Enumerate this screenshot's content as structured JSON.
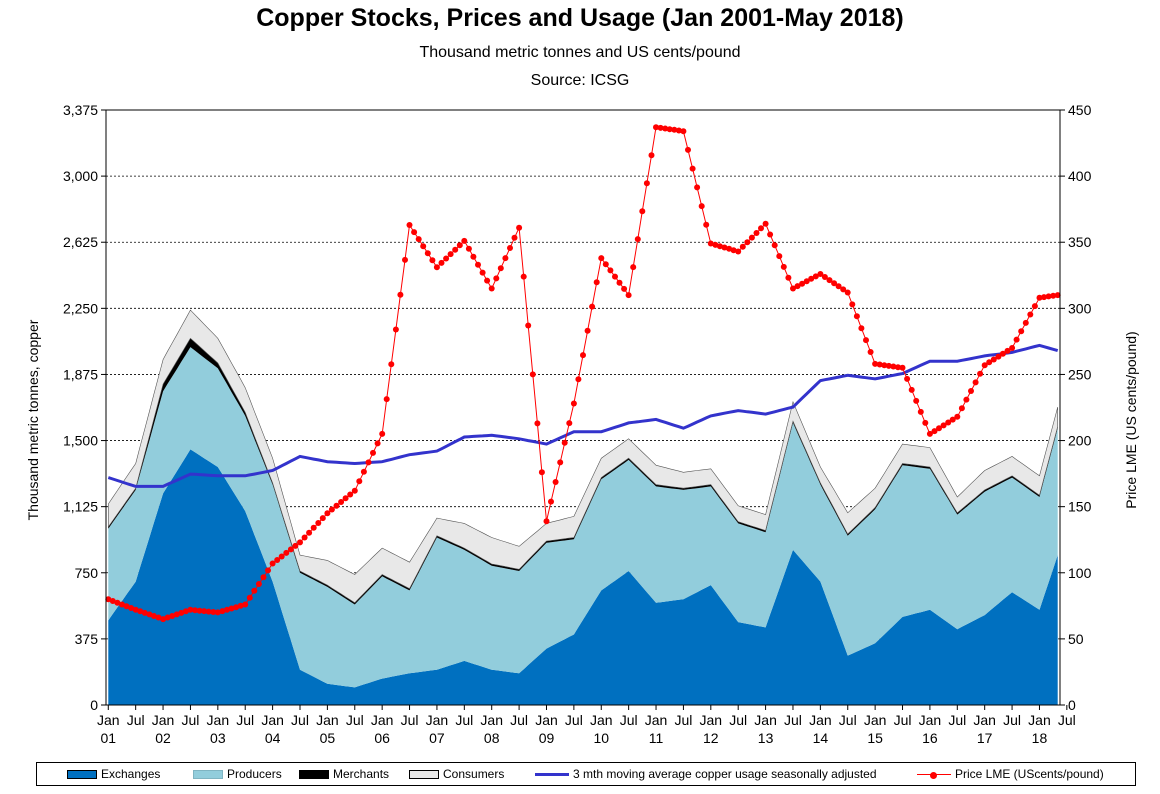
{
  "chart_data": {
    "type": "area",
    "title": "Copper Stocks, Prices and Usage (Jan 2001-May 2018)",
    "subtitle": "Thousand metric tonnes and US cents/pound",
    "source": "Source: ICSG",
    "ylabel": "Thousand metric tonnes, copper",
    "y2label": "Price LME (US cents/pound)",
    "ylim": [
      0,
      3375
    ],
    "y2lim": [
      0,
      450
    ],
    "yticks": [
      "0",
      "375",
      "750",
      "1,125",
      "1,500",
      "1,875",
      "2,250",
      "2,625",
      "3,000",
      "3,375"
    ],
    "y2ticks": [
      "0",
      "50",
      "100",
      "150",
      "200",
      "250",
      "300",
      "350",
      "400",
      "450"
    ],
    "grid": true,
    "legend_position": "bottom",
    "x_months": {
      "start": "2001-01",
      "end": "2018-05"
    },
    "xticks_month": [
      "Jan",
      "Jul",
      "Jan",
      "Jul",
      "Jan",
      "Jul",
      "Jan",
      "Jul",
      "Jan",
      "Jul",
      "Jan",
      "Jul",
      "Jan",
      "Jul",
      "Jan",
      "Jul",
      "Jan",
      "Jul",
      "Jan",
      "Jul",
      "Jan",
      "Jul",
      "Jan",
      "Jul",
      "Jan",
      "Jul",
      "Jan",
      "Jul",
      "Jan",
      "Jul",
      "Jan",
      "Jul",
      "Jan",
      "Jul",
      "Jan",
      "Jul"
    ],
    "xticks_year": [
      "01",
      "02",
      "03",
      "04",
      "05",
      "06",
      "07",
      "08",
      "09",
      "10",
      "11",
      "12",
      "13",
      "14",
      "15",
      "16",
      "17",
      "18"
    ],
    "anchor_months": [
      "2001-01",
      "2001-07",
      "2002-01",
      "2002-07",
      "2003-01",
      "2003-07",
      "2004-01",
      "2004-07",
      "2005-01",
      "2005-07",
      "2006-01",
      "2006-07",
      "2007-01",
      "2007-07",
      "2008-01",
      "2008-07",
      "2009-01",
      "2009-07",
      "2010-01",
      "2010-07",
      "2011-01",
      "2011-07",
      "2012-01",
      "2012-07",
      "2013-01",
      "2013-07",
      "2014-01",
      "2014-07",
      "2015-01",
      "2015-07",
      "2016-01",
      "2016-07",
      "2017-01",
      "2017-07",
      "2018-01",
      "2018-05"
    ],
    "series": [
      {
        "name": "Exchanges",
        "color": "#0070c0",
        "kind": "stacked-area",
        "values": [
          480,
          700,
          1200,
          1450,
          1350,
          1100,
          700,
          200,
          120,
          100,
          150,
          180,
          200,
          250,
          200,
          180,
          320,
          400,
          650,
          760,
          580,
          600,
          680,
          470,
          440,
          880,
          700,
          280,
          350,
          500,
          540,
          430,
          510,
          640,
          540,
          850
        ]
      },
      {
        "name": "Producers",
        "color": "#92cddc",
        "kind": "stacked-area",
        "values": [
          520,
          520,
          580,
          580,
          560,
          540,
          550,
          550,
          550,
          470,
          580,
          470,
          750,
          630,
          590,
          580,
          600,
          540,
          630,
          630,
          660,
          620,
          560,
          560,
          540,
          720,
          550,
          680,
          760,
          860,
          800,
          650,
          700,
          650,
          640,
          720
        ]
      },
      {
        "name": "Merchants",
        "color": "#000000",
        "kind": "stacked-area",
        "values": [
          10,
          10,
          40,
          50,
          30,
          20,
          10,
          10,
          10,
          10,
          10,
          10,
          10,
          10,
          10,
          10,
          10,
          10,
          10,
          10,
          10,
          10,
          10,
          10,
          10,
          10,
          10,
          10,
          10,
          10,
          10,
          10,
          10,
          10,
          10,
          10
        ]
      },
      {
        "name": "Consumers",
        "color": "#e8e8e8",
        "kind": "stacked-area",
        "values": [
          130,
          140,
          140,
          160,
          140,
          140,
          140,
          90,
          140,
          160,
          150,
          150,
          100,
          140,
          150,
          130,
          100,
          120,
          110,
          110,
          110,
          90,
          90,
          90,
          90,
          110,
          90,
          120,
          110,
          110,
          110,
          90,
          110,
          110,
          110,
          110
        ]
      },
      {
        "name": "3 mth moving average copper usage seasonally adjusted",
        "color": "#3333cc",
        "kind": "line",
        "values": [
          1290,
          1240,
          1240,
          1310,
          1300,
          1300,
          1330,
          1410,
          1380,
          1370,
          1380,
          1420,
          1440,
          1520,
          1530,
          1510,
          1480,
          1550,
          1550,
          1600,
          1620,
          1570,
          1640,
          1670,
          1650,
          1690,
          1840,
          1870,
          1850,
          1880,
          1950,
          1950,
          1980,
          2000,
          2040,
          2010
        ]
      },
      {
        "name": "Price LME (UScents/pound)",
        "color": "#ff0000",
        "kind": "line-markers",
        "values": [
          80,
          72,
          65,
          72,
          70,
          76,
          107,
          123,
          145,
          162,
          205,
          363,
          331,
          351,
          315,
          361,
          139,
          228,
          338,
          310,
          437,
          434,
          349,
          343,
          364,
          315,
          326,
          312,
          258,
          255,
          205,
          218,
          257,
          270,
          308,
          310
        ]
      }
    ]
  }
}
